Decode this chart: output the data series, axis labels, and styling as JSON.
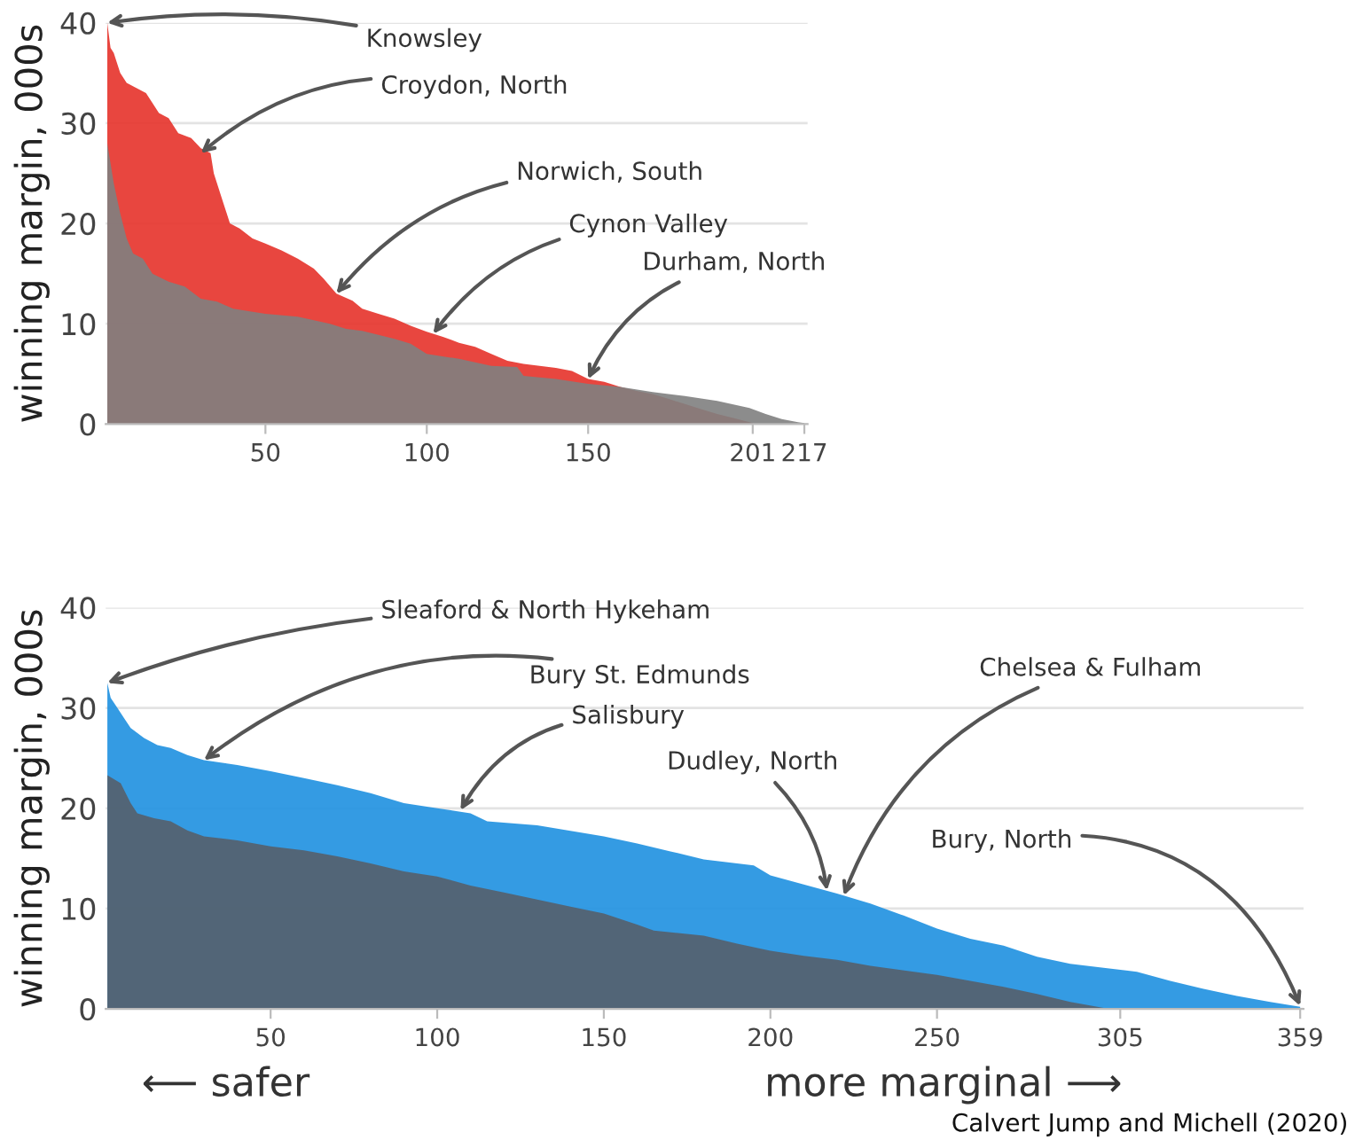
{
  "chart_data": [
    {
      "type": "area",
      "ylabel": "winning margin, 000s",
      "xlim": [
        0.5,
        218
      ],
      "ylim": [
        0,
        40
      ],
      "xticks": [
        50,
        100,
        150,
        201,
        217
      ],
      "yticks": [
        0,
        10,
        20,
        30,
        40
      ],
      "grid": "y",
      "series": [
        {
          "color": "#e5322a",
          "x": [
            1,
            2,
            3,
            5,
            7,
            10,
            13,
            17,
            20,
            23,
            27,
            30,
            33,
            34,
            37,
            39,
            42,
            46,
            50,
            55,
            60,
            65,
            68,
            72,
            77,
            80,
            85,
            90,
            95,
            100,
            105,
            110,
            115,
            120,
            125,
            130,
            140,
            145,
            150,
            155,
            160,
            165,
            170,
            175,
            180,
            185,
            190,
            195,
            200,
            201
          ],
          "values": [
            40,
            37.5,
            37,
            35,
            34,
            33.5,
            33,
            31,
            30.5,
            29,
            28.5,
            27.5,
            27,
            25,
            22,
            20,
            19.5,
            18.5,
            18,
            17.3,
            16.5,
            15.5,
            14.5,
            13,
            12.3,
            11.5,
            11,
            10.5,
            9.8,
            9.2,
            8.7,
            8.1,
            7.7,
            7,
            6.3,
            6,
            5.6,
            5.3,
            4.5,
            4.2,
            3.7,
            3.3,
            3,
            2.5,
            2,
            1.5,
            1,
            0.6,
            0.2,
            0.1
          ]
        },
        {
          "color": "#7f7f7f",
          "x": [
            1,
            2,
            3,
            4,
            5,
            7,
            9,
            12,
            15,
            20,
            25,
            30,
            35,
            40,
            50,
            60,
            70,
            75,
            80,
            90,
            95,
            100,
            110,
            120,
            128,
            130,
            140,
            150,
            160,
            170,
            180,
            190,
            200,
            205,
            210,
            215,
            217
          ],
          "values": [
            28,
            26,
            24,
            22.5,
            21,
            18.5,
            17,
            16.5,
            15,
            14.2,
            13.7,
            12.5,
            12.2,
            11.5,
            11,
            10.7,
            10,
            9.5,
            9.3,
            8.5,
            8,
            7,
            6.5,
            5.8,
            5.7,
            4.8,
            4.5,
            4,
            3.7,
            3.2,
            2.8,
            2.3,
            1.6,
            1,
            0.5,
            0.2,
            0.1
          ]
        }
      ],
      "annotations": [
        {
          "text": "Knowsley",
          "x": 1,
          "y": 40
        },
        {
          "text": "Croydon, North",
          "x": 30,
          "y": 27
        },
        {
          "text": "Norwich, South",
          "x": 72,
          "y": 13
        },
        {
          "text": "Cynon Valley",
          "x": 102,
          "y": 9
        },
        {
          "text": "Durham, North",
          "x": 150,
          "y": 4.5
        }
      ]
    },
    {
      "type": "area",
      "ylabel": "winning margin, 000s",
      "xlim": [
        0.5,
        360
      ],
      "ylim": [
        0,
        40
      ],
      "xticks": [
        50,
        100,
        150,
        200,
        250,
        305,
        359
      ],
      "yticks": [
        0,
        10,
        20,
        30,
        40
      ],
      "grid": "y",
      "series": [
        {
          "color": "#1e90e0",
          "x": [
            1,
            2,
            4,
            6,
            8,
            12,
            16,
            20,
            25,
            30,
            40,
            50,
            60,
            70,
            80,
            90,
            100,
            110,
            115,
            130,
            150,
            160,
            170,
            180,
            190,
            195,
            200,
            210,
            220,
            230,
            240,
            250,
            260,
            270,
            280,
            290,
            300,
            310,
            320,
            330,
            340,
            350,
            359
          ],
          "values": [
            32.5,
            31,
            30,
            29,
            28,
            27,
            26.3,
            26,
            25.3,
            24.8,
            24.3,
            23.7,
            23,
            22.3,
            21.5,
            20.5,
            20,
            19.5,
            18.7,
            18.3,
            17.2,
            16.5,
            15.7,
            14.9,
            14.5,
            14.3,
            13.3,
            12.4,
            11.5,
            10.5,
            9.3,
            8,
            7,
            6.3,
            5.2,
            4.5,
            4.1,
            3.7,
            2.8,
            2,
            1.3,
            0.7,
            0.2
          ]
        },
        {
          "color": "#555f6a",
          "x": [
            1,
            5,
            8,
            10,
            15,
            20,
            25,
            30,
            40,
            50,
            60,
            70,
            80,
            90,
            100,
            110,
            120,
            130,
            140,
            150,
            160,
            165,
            180,
            190,
            200,
            210,
            220,
            230,
            250,
            260,
            270,
            280,
            290,
            300
          ],
          "values": [
            23.3,
            22.5,
            20.5,
            19.5,
            19,
            18.7,
            17.8,
            17.2,
            16.8,
            16.2,
            15.8,
            15.2,
            14.5,
            13.7,
            13.2,
            12.3,
            11.6,
            10.9,
            10.2,
            9.5,
            8.4,
            7.8,
            7.3,
            6.5,
            5.8,
            5.3,
            4.9,
            4.3,
            3.4,
            2.8,
            2.2,
            1.5,
            0.7,
            0.1
          ]
        }
      ],
      "annotations": [
        {
          "text": "Sleaford & North Hykeham",
          "x": 1,
          "y": 32.5
        },
        {
          "text": "Bury St. Edmunds",
          "x": 30,
          "y": 24.8
        },
        {
          "text": "Salisbury",
          "x": 107,
          "y": 19.8
        },
        {
          "text": "Dudley, North",
          "x": 217,
          "y": 11.8
        },
        {
          "text": "Chelsea & Fulham",
          "x": 222,
          "y": 11.3
        },
        {
          "text": "Bury, North",
          "x": 359,
          "y": 0.3
        },
        "⟵ safer",
        "more marginal ⟶",
        "Calvert Jump and Michell (2020)"
      ]
    }
  ]
}
